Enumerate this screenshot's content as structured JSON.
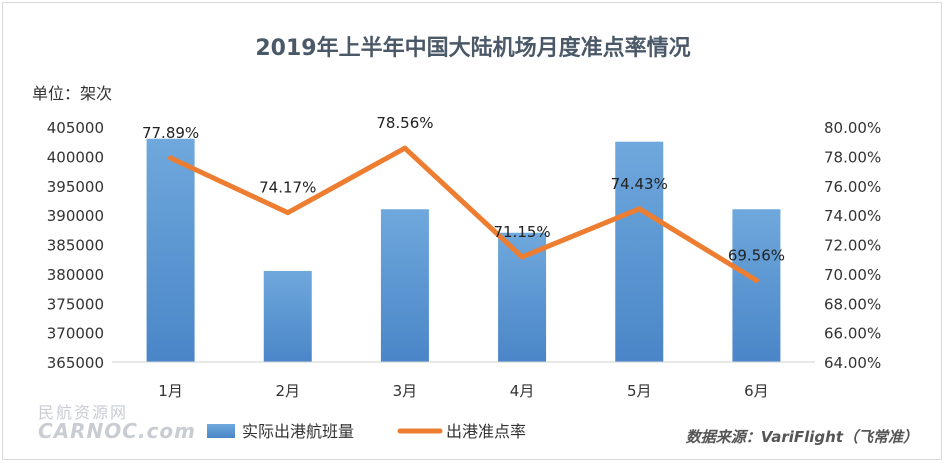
{
  "chart_data": {
    "type": "bar-line-combo",
    "title": "2019年上半年中国大陆机场月度准点率情况",
    "unit_label": "单位：架次",
    "categories": [
      "1月",
      "2月",
      "3月",
      "4月",
      "5月",
      "6月"
    ],
    "series": [
      {
        "name": "实际出港航班量",
        "type": "bar",
        "axis": "left",
        "color": "#5b9bd5",
        "values": [
          403000,
          380500,
          391000,
          387000,
          402500,
          391000
        ]
      },
      {
        "name": "出港准点率",
        "type": "line",
        "axis": "right",
        "color": "#ed7d31",
        "values": [
          77.89,
          74.17,
          78.56,
          71.15,
          74.43,
          69.56
        ],
        "data_labels": [
          "77.89%",
          "74.17%",
          "78.56%",
          "71.15%",
          "74.43%",
          "69.56%"
        ]
      }
    ],
    "left_axis": {
      "min": 365000,
      "max": 405000,
      "step": 5000,
      "ticks": [
        "405000",
        "400000",
        "395000",
        "390000",
        "385000",
        "380000",
        "375000",
        "370000",
        "365000"
      ]
    },
    "right_axis": {
      "min": 64,
      "max": 80,
      "step": 2,
      "ticks": [
        "80.00%",
        "78.00%",
        "76.00%",
        "74.00%",
        "72.00%",
        "70.00%",
        "68.00%",
        "66.00%",
        "64.00%"
      ]
    },
    "legend": [
      "实际出港航班量",
      "出港准点率"
    ],
    "legend_position": "bottom",
    "grid": false
  },
  "source": "数据来源：VariFlight（飞常准）",
  "watermark": {
    "line1": "民航资源网",
    "line2": "CARNOC.com"
  }
}
